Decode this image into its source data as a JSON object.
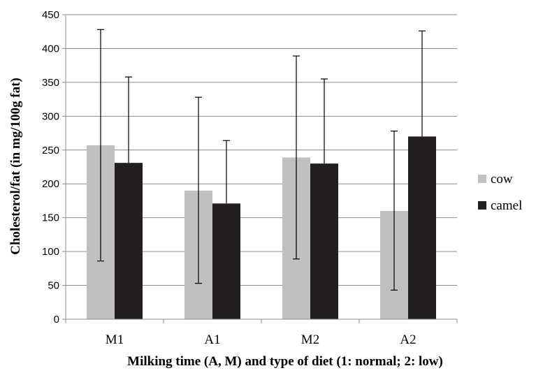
{
  "chart_data": {
    "type": "bar",
    "categories": [
      "M1",
      "A1",
      "M2",
      "A2"
    ],
    "series": [
      {
        "name": "cow",
        "color": "#c0c0c0",
        "values": [
          257,
          190,
          239,
          160
        ],
        "error_low": [
          86,
          53,
          89,
          43
        ],
        "error_high": [
          428,
          328,
          389,
          278
        ]
      },
      {
        "name": "camel",
        "color": "#231f20",
        "values": [
          231,
          171,
          230,
          270
        ],
        "error_low": [
          null,
          null,
          null,
          null
        ],
        "error_high": [
          358,
          264,
          355,
          426
        ]
      }
    ],
    "ylim": [
      0,
      450
    ],
    "yticks": [
      0,
      50,
      100,
      150,
      200,
      250,
      300,
      350,
      400,
      450
    ],
    "xlabel": "Milking time (A, M) and type of diet (1: normal; 2: low)",
    "ylabel": "Cholesterol/fat (in mg/100g fat)",
    "grid": true,
    "legend_position": "right"
  }
}
